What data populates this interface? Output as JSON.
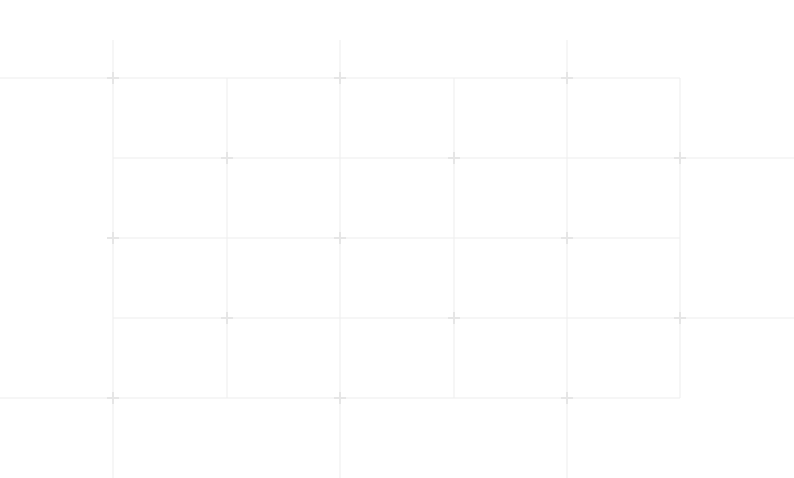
{
  "background": {
    "color": "#ffffff",
    "line_color": "#eeeeee",
    "marker_color": "#e6e6e6",
    "pattern": "grid-lines-with-plus-markers"
  }
}
